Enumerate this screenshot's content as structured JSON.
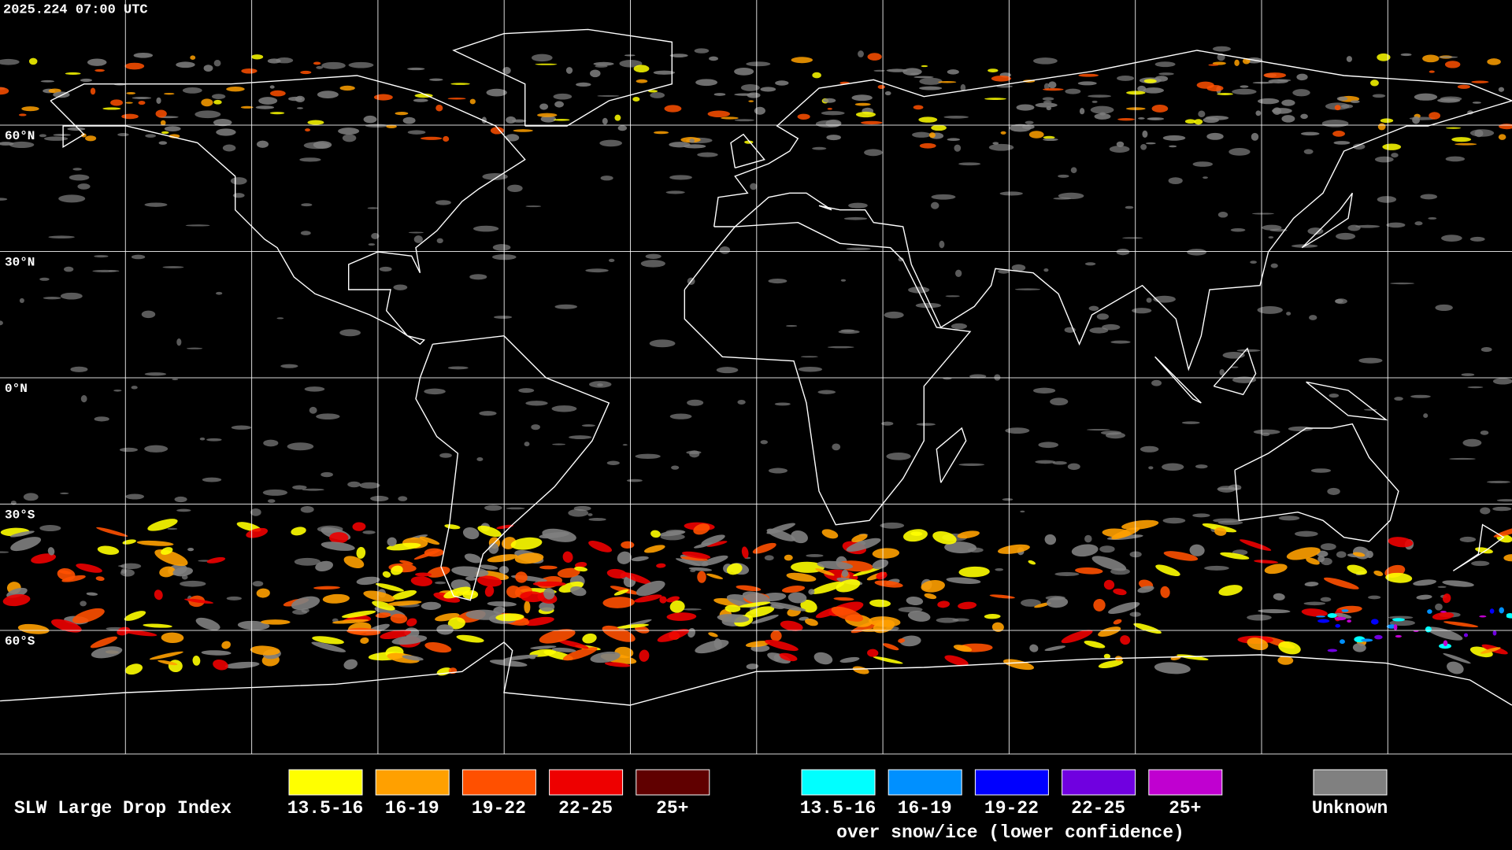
{
  "header": {
    "timestamp": "2025.224 07:00 UTC"
  },
  "map": {
    "lat_labels": [
      "60°N",
      "30°N",
      "0°N",
      "30°S",
      "60°S"
    ]
  },
  "legend": {
    "title": "SLW Large Drop Index",
    "liquid": [
      {
        "label": "13.5-16",
        "color": "#ffff00"
      },
      {
        "label": "16-19",
        "color": "#ffa000"
      },
      {
        "label": "19-22",
        "color": "#ff5000"
      },
      {
        "label": "22-25",
        "color": "#ee0000"
      },
      {
        "label": "25+",
        "color": "#600000"
      }
    ],
    "snow_ice": [
      {
        "label": "13.5-16",
        "color": "#00ffff"
      },
      {
        "label": "16-19",
        "color": "#0090ff"
      },
      {
        "label": "19-22",
        "color": "#0000ff"
      },
      {
        "label": "22-25",
        "color": "#7000e0"
      },
      {
        "label": "25+",
        "color": "#c000d0"
      }
    ],
    "snow_ice_caption": "over snow/ice (lower confidence)",
    "unknown": {
      "label": "Unknown",
      "color": "#808080"
    }
  }
}
